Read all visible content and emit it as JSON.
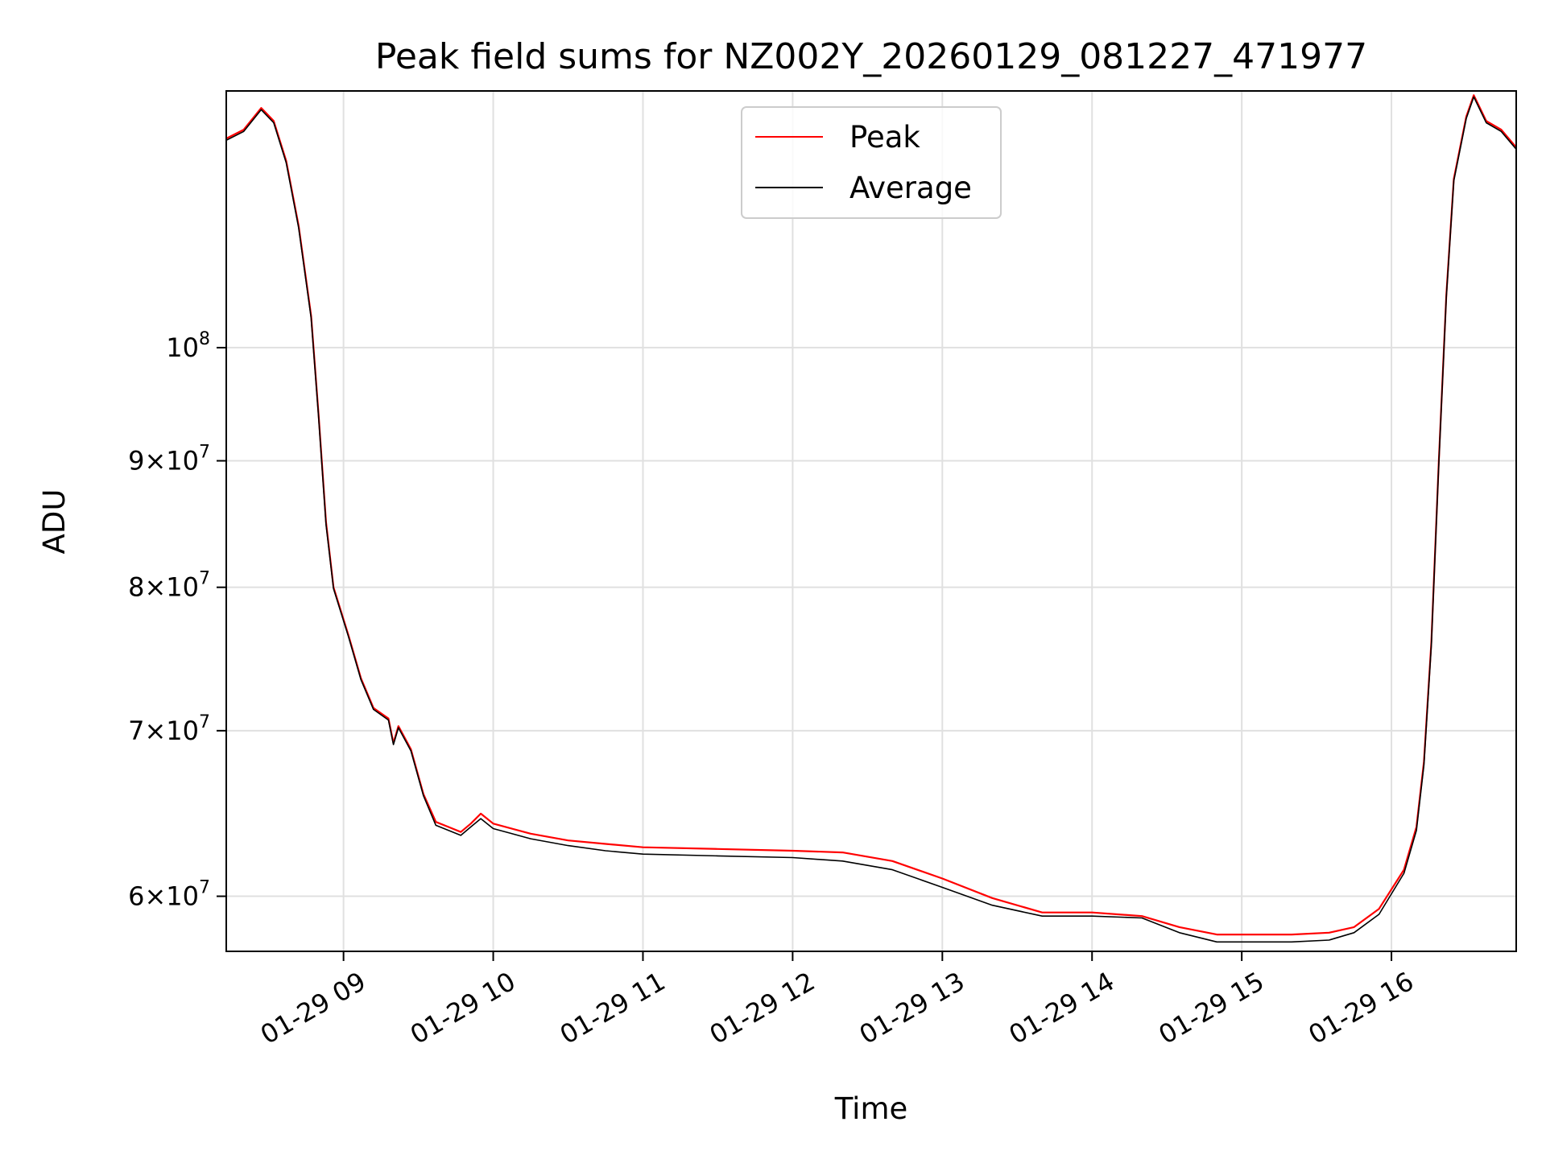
{
  "chart_data": {
    "type": "line",
    "title": "Peak field sums for NZ002Y_20260129_081227_471977",
    "xlabel": "Time",
    "ylabel": "ADU",
    "y_scale": "log",
    "grid": true,
    "legend_position": "top-center",
    "xlim": [
      "2026-01-29 08:13",
      "2026-01-29 16:50"
    ],
    "ylim": [
      57000000,
      127000000
    ],
    "x_ticks": [
      {
        "time": "2026-01-29 09:00",
        "label": "01-29 09"
      },
      {
        "time": "2026-01-29 10:00",
        "label": "01-29 10"
      },
      {
        "time": "2026-01-29 11:00",
        "label": "01-29 11"
      },
      {
        "time": "2026-01-29 12:00",
        "label": "01-29 12"
      },
      {
        "time": "2026-01-29 13:00",
        "label": "01-29 13"
      },
      {
        "time": "2026-01-29 14:00",
        "label": "01-29 14"
      },
      {
        "time": "2026-01-29 15:00",
        "label": "01-29 15"
      },
      {
        "time": "2026-01-29 16:00",
        "label": "01-29 16"
      }
    ],
    "y_ticks": [
      {
        "value": 60000000,
        "base": "6",
        "exp": "7"
      },
      {
        "value": 70000000,
        "base": "7",
        "exp": "7"
      },
      {
        "value": 80000000,
        "base": "8",
        "exp": "7"
      },
      {
        "value": 90000000,
        "base": "9",
        "exp": "7"
      },
      {
        "value": 100000000,
        "base": "",
        "exp": "8"
      }
    ],
    "series": [
      {
        "name": "Peak",
        "color": "#ff0000",
        "points": [
          [
            "2026-01-29 08:13",
            121500000
          ],
          [
            "2026-01-29 08:20",
            122500000
          ],
          [
            "2026-01-29 08:27",
            125000000
          ],
          [
            "2026-01-29 08:32",
            123500000
          ],
          [
            "2026-01-29 08:37",
            119000000
          ],
          [
            "2026-01-29 08:42",
            112000000
          ],
          [
            "2026-01-29 08:47",
            103000000
          ],
          [
            "2026-01-29 08:50",
            94000000
          ],
          [
            "2026-01-29 08:53",
            85000000
          ],
          [
            "2026-01-29 08:56",
            80000000
          ],
          [
            "2026-01-29 09:02",
            76500000
          ],
          [
            "2026-01-29 09:07",
            73500000
          ],
          [
            "2026-01-29 09:12",
            71500000
          ],
          [
            "2026-01-29 09:18",
            70800000
          ],
          [
            "2026-01-29 09:20",
            69200000
          ],
          [
            "2026-01-29 09:22",
            70300000
          ],
          [
            "2026-01-29 09:27",
            68800000
          ],
          [
            "2026-01-29 09:32",
            66000000
          ],
          [
            "2026-01-29 09:37",
            64300000
          ],
          [
            "2026-01-29 09:42",
            64000000
          ],
          [
            "2026-01-29 09:47",
            63700000
          ],
          [
            "2026-01-29 09:51",
            64200000
          ],
          [
            "2026-01-29 09:55",
            64800000
          ],
          [
            "2026-01-29 10:00",
            64200000
          ],
          [
            "2026-01-29 10:15",
            63600000
          ],
          [
            "2026-01-29 10:30",
            63200000
          ],
          [
            "2026-01-29 10:45",
            63000000
          ],
          [
            "2026-01-29 11:00",
            62800000
          ],
          [
            "2026-01-29 11:30",
            62700000
          ],
          [
            "2026-01-29 12:00",
            62600000
          ],
          [
            "2026-01-29 12:20",
            62500000
          ],
          [
            "2026-01-29 12:40",
            62000000
          ],
          [
            "2026-01-29 13:00",
            61000000
          ],
          [
            "2026-01-29 13:20",
            59900000
          ],
          [
            "2026-01-29 13:40",
            59100000
          ],
          [
            "2026-01-29 14:00",
            59100000
          ],
          [
            "2026-01-29 14:20",
            58900000
          ],
          [
            "2026-01-29 14:35",
            58300000
          ],
          [
            "2026-01-29 14:50",
            57900000
          ],
          [
            "2026-01-29 15:20",
            57900000
          ],
          [
            "2026-01-29 15:35",
            58000000
          ],
          [
            "2026-01-29 15:45",
            58300000
          ],
          [
            "2026-01-29 15:55",
            59300000
          ],
          [
            "2026-01-29 16:05",
            61500000
          ],
          [
            "2026-01-29 16:10",
            64000000
          ],
          [
            "2026-01-29 16:13",
            68000000
          ],
          [
            "2026-01-29 16:16",
            76000000
          ],
          [
            "2026-01-29 16:19",
            90000000
          ],
          [
            "2026-01-29 16:22",
            105000000
          ],
          [
            "2026-01-29 16:25",
            117000000
          ],
          [
            "2026-01-29 16:30",
            124000000
          ],
          [
            "2026-01-29 16:33",
            126500000
          ],
          [
            "2026-01-29 16:38",
            123500000
          ],
          [
            "2026-01-29 16:44",
            122500000
          ],
          [
            "2026-01-29 16:50",
            120500000
          ]
        ]
      },
      {
        "name": "Average",
        "color": "#000000",
        "points": [
          [
            "2026-01-29 08:13",
            121300000
          ],
          [
            "2026-01-29 08:20",
            122300000
          ],
          [
            "2026-01-29 08:27",
            124800000
          ],
          [
            "2026-01-29 08:32",
            123300000
          ],
          [
            "2026-01-29 08:37",
            118800000
          ],
          [
            "2026-01-29 08:42",
            111800000
          ],
          [
            "2026-01-29 08:47",
            102800000
          ],
          [
            "2026-01-29 08:50",
            93800000
          ],
          [
            "2026-01-29 08:53",
            84800000
          ],
          [
            "2026-01-29 08:56",
            79900000
          ],
          [
            "2026-01-29 09:02",
            76400000
          ],
          [
            "2026-01-29 09:07",
            73400000
          ],
          [
            "2026-01-29 09:12",
            71400000
          ],
          [
            "2026-01-29 09:18",
            70700000
          ],
          [
            "2026-01-29 09:20",
            69100000
          ],
          [
            "2026-01-29 09:22",
            70200000
          ],
          [
            "2026-01-29 09:27",
            68700000
          ],
          [
            "2026-01-29 09:32",
            65900000
          ],
          [
            "2026-01-29 09:37",
            64100000
          ],
          [
            "2026-01-29 09:42",
            63800000
          ],
          [
            "2026-01-29 09:47",
            63500000
          ],
          [
            "2026-01-29 09:51",
            64000000
          ],
          [
            "2026-01-29 09:55",
            64500000
          ],
          [
            "2026-01-29 10:00",
            63900000
          ],
          [
            "2026-01-29 10:15",
            63300000
          ],
          [
            "2026-01-29 10:30",
            62900000
          ],
          [
            "2026-01-29 10:45",
            62600000
          ],
          [
            "2026-01-29 11:00",
            62400000
          ],
          [
            "2026-01-29 11:30",
            62300000
          ],
          [
            "2026-01-29 12:00",
            62200000
          ],
          [
            "2026-01-29 12:20",
            62000000
          ],
          [
            "2026-01-29 12:40",
            61500000
          ],
          [
            "2026-01-29 13:00",
            60500000
          ],
          [
            "2026-01-29 13:20",
            59500000
          ],
          [
            "2026-01-29 13:40",
            58900000
          ],
          [
            "2026-01-29 14:00",
            58900000
          ],
          [
            "2026-01-29 14:20",
            58800000
          ],
          [
            "2026-01-29 14:35",
            58000000
          ],
          [
            "2026-01-29 14:50",
            57500000
          ],
          [
            "2026-01-29 15:20",
            57500000
          ],
          [
            "2026-01-29 15:35",
            57600000
          ],
          [
            "2026-01-29 15:45",
            58000000
          ],
          [
            "2026-01-29 15:55",
            59000000
          ],
          [
            "2026-01-29 16:05",
            61300000
          ],
          [
            "2026-01-29 16:10",
            63800000
          ],
          [
            "2026-01-29 16:13",
            67800000
          ],
          [
            "2026-01-29 16:16",
            75800000
          ],
          [
            "2026-01-29 16:19",
            89800000
          ],
          [
            "2026-01-29 16:22",
            104800000
          ],
          [
            "2026-01-29 16:25",
            116800000
          ],
          [
            "2026-01-29 16:30",
            123800000
          ],
          [
            "2026-01-29 16:33",
            126300000
          ],
          [
            "2026-01-29 16:38",
            123300000
          ],
          [
            "2026-01-29 16:44",
            122300000
          ],
          [
            "2026-01-29 16:50",
            120300000
          ]
        ]
      }
    ]
  }
}
